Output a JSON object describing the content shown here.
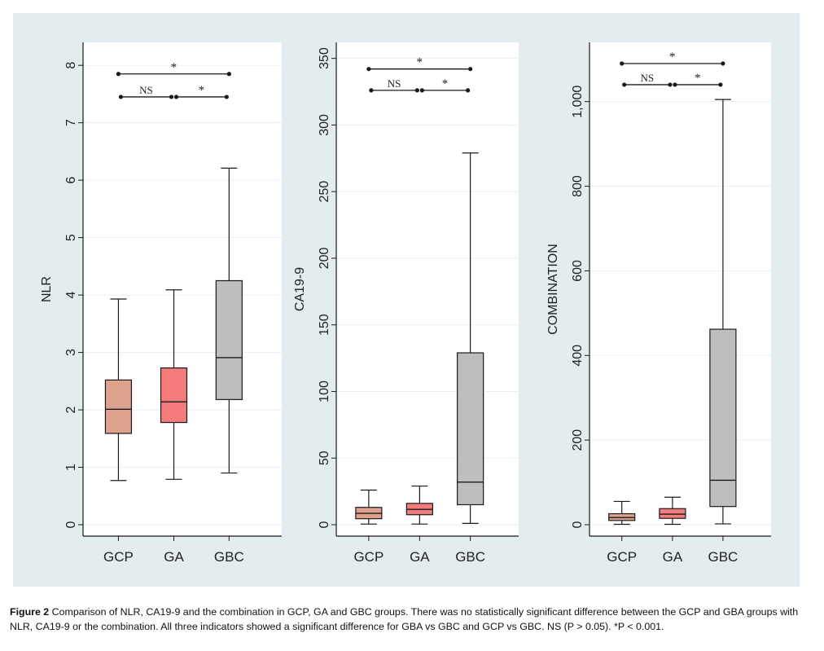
{
  "figure": {
    "caption_label": "Figure 2",
    "caption_text": "Comparison of NLR, CA19-9 and the combination in GCP, GA and GBC groups. There was no statistically significant difference between the GCP and GBA groups with NLR, CA19-9 or the combination. All three indicators showed a significant difference for GBA vs GBC and GCP vs GBC. NS (P > 0.05). *P < 0.001."
  },
  "colors": {
    "background": "#e3ecee",
    "plot_bg": "#ffffff",
    "grid": "#e9eff1",
    "GCP": "#dca28e",
    "GA": "#f47c7c",
    "GBC": "#bebebe",
    "line": "#1a1a1a"
  },
  "chart_data": [
    {
      "type": "box",
      "ylabel": "NLR",
      "categories": [
        "GCP",
        "GA",
        "GBC"
      ],
      "ylim": [
        0,
        8
      ],
      "yticks": [
        0,
        1,
        2,
        3,
        4,
        5,
        6,
        7,
        8
      ],
      "ytick_labels": [
        "0",
        "1",
        "2",
        "3",
        "4",
        "5",
        "6",
        "7",
        "8"
      ],
      "boxes": [
        {
          "group": "GCP",
          "min": 0.77,
          "q1": 1.59,
          "median": 2.01,
          "q3": 2.52,
          "max": 3.93
        },
        {
          "group": "GA",
          "min": 0.79,
          "q1": 1.78,
          "median": 2.14,
          "q3": 2.73,
          "max": 4.09
        },
        {
          "group": "GBC",
          "min": 0.9,
          "q1": 2.18,
          "median": 2.91,
          "q3": 4.25,
          "max": 6.21
        }
      ],
      "significance": [
        {
          "from": "GCP",
          "to": "GBC",
          "label": "*",
          "level": 7.85
        },
        {
          "from": "GCP",
          "to": "GA",
          "label": "NS",
          "level": 7.45
        },
        {
          "from": "GA",
          "to": "GBC",
          "label": "*",
          "level": 7.45
        }
      ]
    },
    {
      "type": "box",
      "ylabel": "CA19-9",
      "categories": [
        "GCP",
        "GA",
        "GBC"
      ],
      "ylim": [
        0,
        350
      ],
      "yticks": [
        0,
        50,
        100,
        150,
        200,
        250,
        300,
        350
      ],
      "ytick_labels": [
        "0",
        "50",
        "100",
        "150",
        "200",
        "250",
        "300",
        "350"
      ],
      "boxes": [
        {
          "group": "GCP",
          "min": 0.5,
          "q1": 4.5,
          "median": 8.5,
          "q3": 13,
          "max": 26
        },
        {
          "group": "GA",
          "min": 0.5,
          "q1": 7.5,
          "median": 11.5,
          "q3": 16,
          "max": 29
        },
        {
          "group": "GBC",
          "min": 1,
          "q1": 15,
          "median": 32,
          "q3": 129,
          "max": 279
        }
      ],
      "significance": [
        {
          "from": "GCP",
          "to": "GBC",
          "label": "*",
          "level": 342
        },
        {
          "from": "GCP",
          "to": "GA",
          "label": "NS",
          "level": 326
        },
        {
          "from": "GA",
          "to": "GBC",
          "label": "*",
          "level": 326
        }
      ]
    },
    {
      "type": "box",
      "ylabel": "COMBINATION",
      "categories": [
        "GCP",
        "GA",
        "GBC"
      ],
      "ylim": [
        0,
        1100
      ],
      "yticks": [
        0,
        200,
        400,
        600,
        800,
        1000
      ],
      "ytick_labels": [
        "0",
        "200",
        "400",
        "600",
        "800",
        "1,000"
      ],
      "boxes": [
        {
          "group": "GCP",
          "min": 1,
          "q1": 10,
          "median": 17,
          "q3": 26,
          "max": 55
        },
        {
          "group": "GA",
          "min": 1,
          "q1": 15,
          "median": 25,
          "q3": 38,
          "max": 65
        },
        {
          "group": "GBC",
          "min": 2,
          "q1": 43,
          "median": 105,
          "q3": 462,
          "max": 1005
        }
      ],
      "significance": [
        {
          "from": "GCP",
          "to": "GBC",
          "label": "*",
          "level": 1090
        },
        {
          "from": "GCP",
          "to": "GA",
          "label": "NS",
          "level": 1040
        },
        {
          "from": "GA",
          "to": "GBC",
          "label": "*",
          "level": 1040
        }
      ]
    }
  ]
}
